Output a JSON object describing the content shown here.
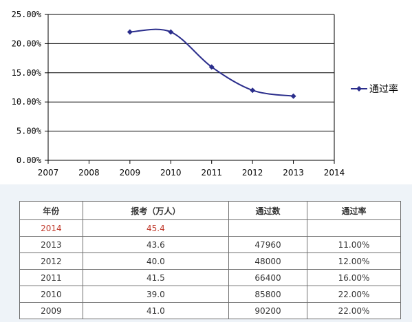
{
  "chart_data": {
    "type": "line",
    "x": [
      2009,
      2010,
      2011,
      2012,
      2013
    ],
    "series": [
      {
        "name": "通过率",
        "values": [
          22,
          22,
          16,
          12,
          11
        ]
      }
    ],
    "xlim": [
      2007,
      2014
    ],
    "ylim": [
      0,
      25
    ],
    "x_ticks": [
      "2007",
      "2008",
      "2009",
      "2010",
      "2011",
      "2012",
      "2013",
      "2014"
    ],
    "y_ticks": [
      "0.00%",
      "5.00%",
      "10.00%",
      "15.00%",
      "20.00%",
      "25.00%"
    ],
    "y_grid": true,
    "smooth": true,
    "legend_position": "right",
    "colors": {
      "series": "#2b2e8c",
      "grid": "#000000",
      "axis": "#000000"
    }
  },
  "table": {
    "headers": [
      "年份",
      "报考（万人）",
      "通过数",
      "通过率"
    ],
    "rows": [
      [
        "2014",
        "45.4",
        "",
        ""
      ],
      [
        "2013",
        "43.6",
        "47960",
        "11.00%"
      ],
      [
        "2012",
        "40.0",
        "48000",
        "12.00%"
      ],
      [
        "2011",
        "41.5",
        "66400",
        "16.00%"
      ],
      [
        "2010",
        "39.0",
        "85800",
        "22.00%"
      ],
      [
        "2009",
        "41.0",
        "90200",
        "22.00%"
      ]
    ],
    "highlight_color": "#c0392b"
  }
}
